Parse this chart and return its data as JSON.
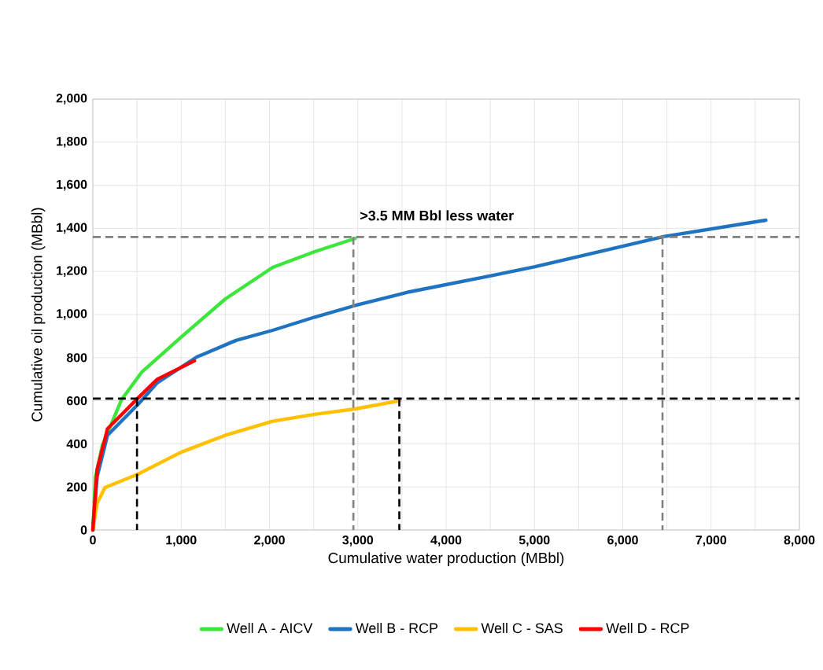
{
  "chart_data": {
    "type": "line",
    "xlabel": "Cumulative water production (MBbl)",
    "ylabel": "Cumulative oil production (MBbl)",
    "xlim": [
      0,
      8000
    ],
    "ylim": [
      0,
      2000
    ],
    "xticks": [
      0,
      {
        "value": 1000,
        "label": "1,000"
      },
      {
        "value": 2000,
        "label": "2,000"
      },
      {
        "value": 3000,
        "label": "3,000"
      },
      {
        "value": 4000,
        "label": "4,000"
      },
      {
        "value": 5000,
        "label": "5,000"
      },
      {
        "value": 6000,
        "label": "6,000"
      },
      {
        "value": 7000,
        "label": "7,000"
      },
      {
        "value": 8000,
        "label": "8,000"
      }
    ],
    "yticks": [
      0,
      200,
      400,
      600,
      800,
      {
        "value": 1000,
        "label": "1,000"
      },
      {
        "value": 1200,
        "label": "1,200"
      },
      {
        "value": 1400,
        "label": "1,400"
      },
      {
        "value": 1600,
        "label": "1,600"
      },
      {
        "value": 1800,
        "label": "1,800"
      },
      {
        "value": 2000,
        "label": "2,000"
      }
    ],
    "grid": true,
    "legend": "bottom",
    "marker": "none",
    "line_style": "solid",
    "series": [
      {
        "name": "Well A - AICV",
        "color": "#3ce63c",
        "x": [
          0,
          30,
          107,
          326,
          552,
          998,
          1502,
          2037,
          2512,
          2970
        ],
        "values": [
          0,
          246,
          392,
          606,
          732,
          895,
          1073,
          1219,
          1292,
          1353
        ]
      },
      {
        "name": "Well B - RCP",
        "color": "#1f73c0",
        "x": [
          0,
          48,
          166,
          505,
          731,
          1176,
          1621,
          2037,
          2512,
          2970,
          3581,
          4531,
          5007,
          6462,
          7620
        ],
        "values": [
          0,
          246,
          440,
          580,
          684,
          803,
          880,
          927,
          988,
          1042,
          1105,
          1182,
          1222,
          1362,
          1438
        ]
      },
      {
        "name": "Well C - SAS",
        "color": "#ffc000",
        "x": [
          0,
          48,
          137,
          505,
          998,
          1502,
          2037,
          2512,
          2970,
          3474
        ],
        "values": [
          0,
          124,
          197,
          258,
          361,
          440,
          505,
          537,
          562,
          600
        ]
      },
      {
        "name": "Well D - RCP",
        "color": "#ff0000",
        "x": [
          0,
          48,
          166,
          505,
          731,
          1150
        ],
        "values": [
          0,
          280,
          470,
          610,
          700,
          785
        ]
      }
    ],
    "ref_lines": [
      {
        "axis": "y",
        "value": 1360,
        "color": "#808080",
        "line_style": "dashed"
      },
      {
        "axis": "y",
        "value": 610,
        "color": "#000000",
        "line_style": "dashed"
      },
      {
        "axis": "x",
        "value": 500,
        "color": "#000000",
        "line_style": "dashed"
      },
      {
        "axis": "x",
        "value": 2950,
        "color": "#808080",
        "line_style": "dashed"
      },
      {
        "axis": "x",
        "value": 3470,
        "color": "#000000",
        "line_style": "dashed"
      },
      {
        "axis": "x",
        "value": 6450,
        "color": "#808080",
        "line_style": "dashed"
      }
    ],
    "annotations": [
      ">3.5 MM Bbl less water"
    ]
  }
}
